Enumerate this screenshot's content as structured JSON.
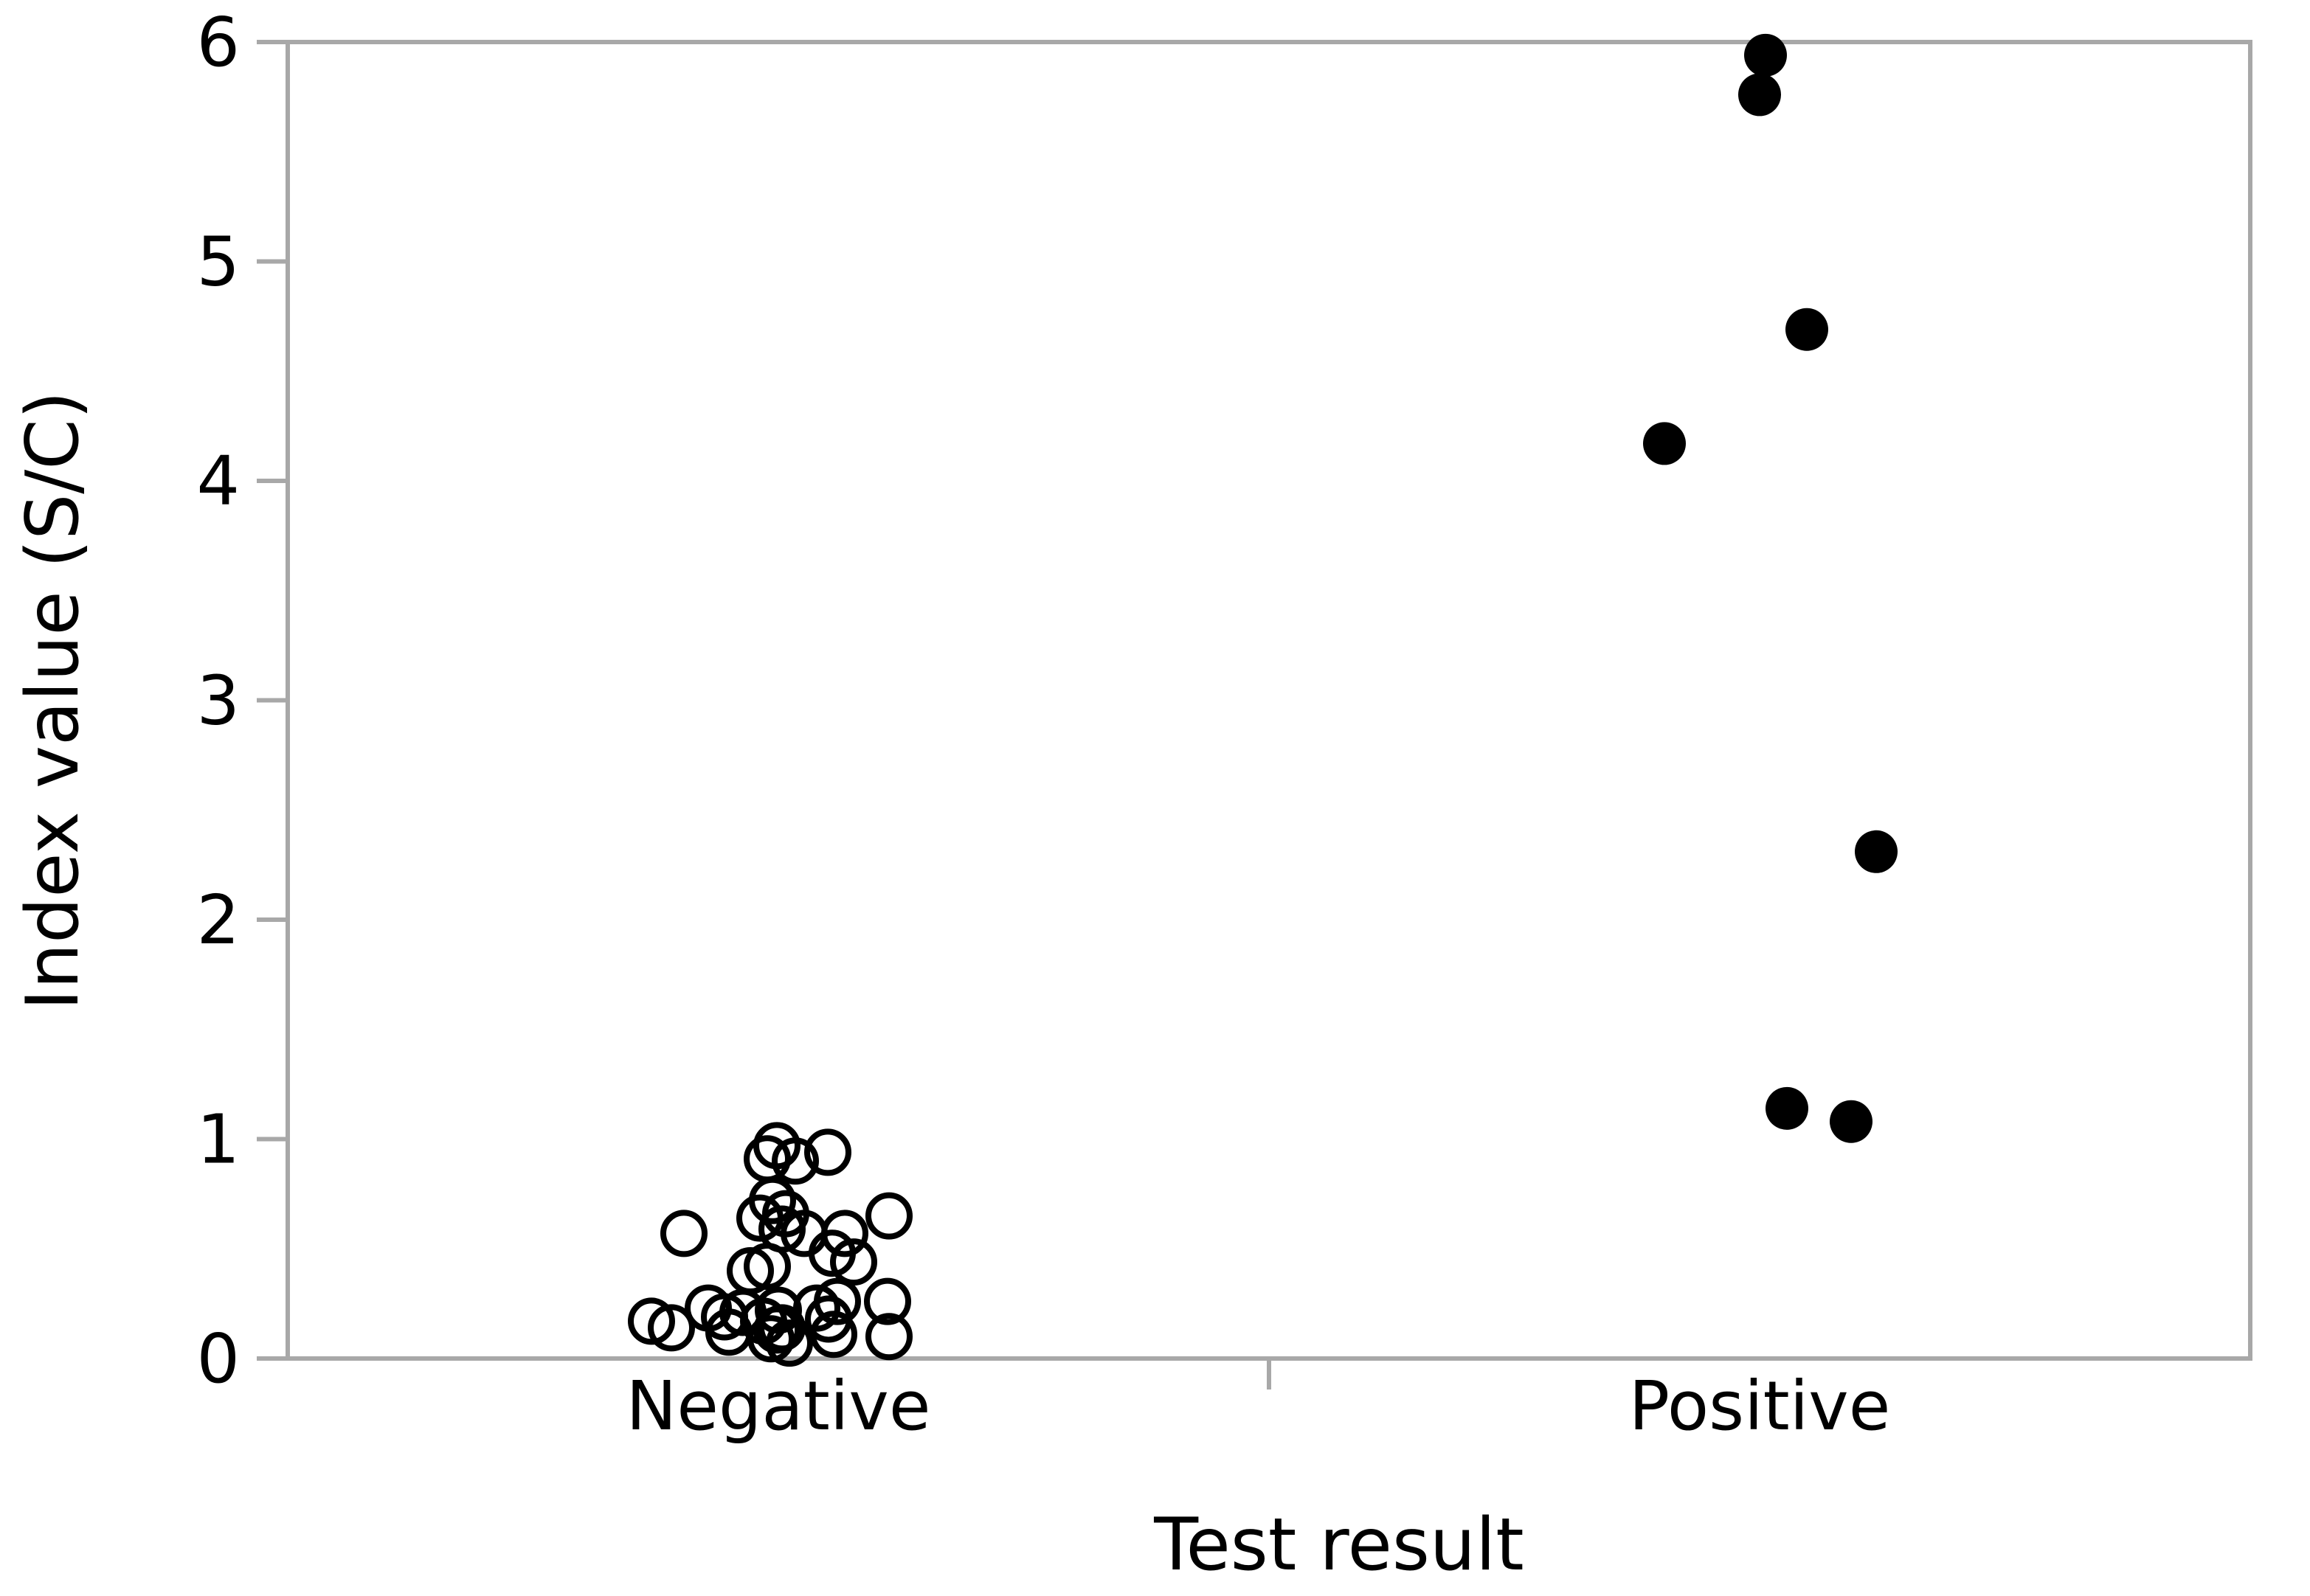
{
  "figure": {
    "background": "#ffffff",
    "axis_color": "#a8a8a8",
    "marker_color": "#000000"
  },
  "chart_data": {
    "type": "scatter",
    "title": "",
    "xlabel": "Test result",
    "ylabel": "Index value (S/C)",
    "ylim": [
      0,
      6
    ],
    "yticks": [
      0,
      1,
      2,
      3,
      4,
      5,
      6
    ],
    "categories": [
      "Negative",
      "Positive"
    ],
    "grid": false,
    "legend_position": "none",
    "series": [
      {
        "name": "Negative",
        "marker": "open-circle",
        "points": [
          {
            "dx": -2,
            "y": 0.97
          },
          {
            "dx": -15,
            "y": 0.91
          },
          {
            "dx": 23,
            "y": 0.9
          },
          {
            "dx": 67,
            "y": 0.94
          },
          {
            "dx": -8,
            "y": 0.72
          },
          {
            "dx": 10,
            "y": 0.66
          },
          {
            "dx": -25,
            "y": 0.64
          },
          {
            "dx": 5,
            "y": 0.59
          },
          {
            "dx": 35,
            "y": 0.57
          },
          {
            "dx": -128,
            "y": 0.57
          },
          {
            "dx": 150,
            "y": 0.65
          },
          {
            "dx": 90,
            "y": 0.57
          },
          {
            "dx": 102,
            "y": 0.44
          },
          {
            "dx": 73,
            "y": 0.48
          },
          {
            "dx": -38,
            "y": 0.4
          },
          {
            "dx": -15,
            "y": 0.42
          },
          {
            "dx": -172,
            "y": 0.17
          },
          {
            "dx": -145,
            "y": 0.14
          },
          {
            "dx": -95,
            "y": 0.23
          },
          {
            "dx": -73,
            "y": 0.19
          },
          {
            "dx": -67,
            "y": 0.12
          },
          {
            "dx": -48,
            "y": 0.21
          },
          {
            "dx": -20,
            "y": 0.17
          },
          {
            "dx": 0,
            "y": 0.22
          },
          {
            "dx": 5,
            "y": 0.14
          },
          {
            "dx": -10,
            "y": 0.09
          },
          {
            "dx": 15,
            "y": 0.07
          },
          {
            "dx": -2,
            "y": 0.13
          },
          {
            "dx": 52,
            "y": 0.23
          },
          {
            "dx": 68,
            "y": 0.18
          },
          {
            "dx": 80,
            "y": 0.26
          },
          {
            "dx": 75,
            "y": 0.11
          },
          {
            "dx": 148,
            "y": 0.26
          },
          {
            "dx": 150,
            "y": 0.1
          }
        ]
      },
      {
        "name": "Positive",
        "marker": "filled-circle",
        "points": [
          {
            "dx": 8,
            "y": 5.94
          },
          {
            "dx": 0,
            "y": 5.76
          },
          {
            "dx": 64,
            "y": 4.69
          },
          {
            "dx": -129,
            "y": 4.17
          },
          {
            "dx": 158,
            "y": 2.31
          },
          {
            "dx": 37,
            "y": 1.14
          },
          {
            "dx": 124,
            "y": 1.08
          }
        ]
      }
    ]
  }
}
